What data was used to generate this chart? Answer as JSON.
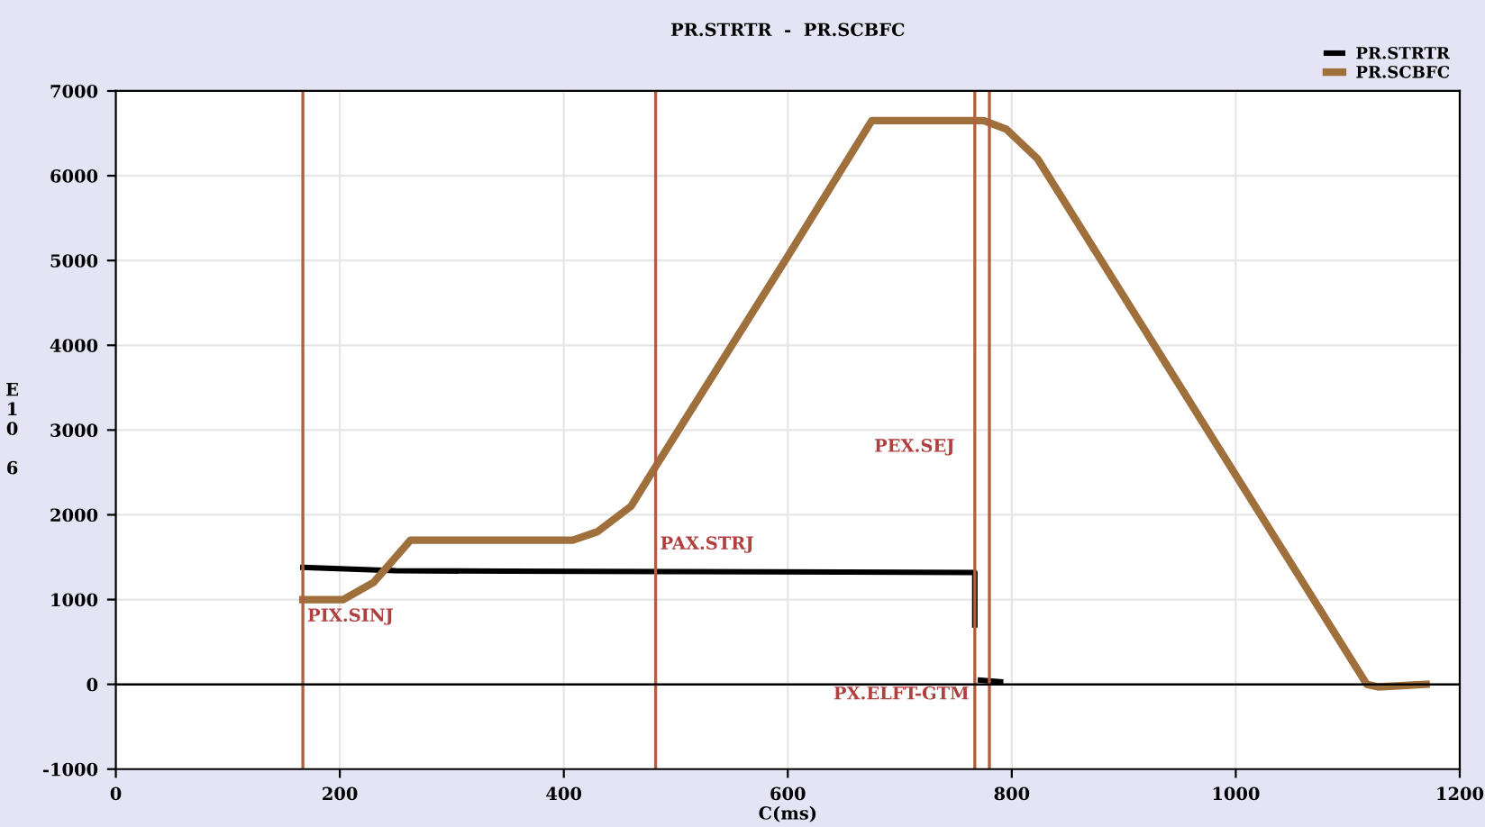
{
  "chart_data": {
    "type": "line",
    "title": "PR.STRTR  -  PR.SCBFC",
    "xlabel": "C(ms)",
    "ylabel": "E10 6",
    "xlim": [
      0,
      1200
    ],
    "xticks": [
      0,
      200,
      400,
      600,
      800,
      1000,
      1200
    ],
    "ylim": [
      -1000,
      7000
    ],
    "yticks": [
      -1000,
      0,
      1000,
      2000,
      3000,
      4000,
      5000,
      6000,
      7000
    ],
    "grid": true,
    "legend": "top right",
    "line_style": "solid",
    "series": [
      {
        "name": "PR.STRTR",
        "color": "#000000",
        "x": [
          167,
          250,
          350,
          500,
          650,
          767,
          767,
          768,
          772,
          790
        ],
        "values": [
          1380,
          1340,
          1335,
          1330,
          1325,
          1320,
          700,
          null,
          50,
          30
        ]
      },
      {
        "name": "PR.SCBFC",
        "color": "#a0703c",
        "x": [
          167,
          203,
          230,
          263,
          408,
          430,
          460,
          482,
          600,
          675,
          775,
          795,
          823,
          1117,
          1127,
          1170
        ],
        "values": [
          1000,
          1000,
          1200,
          1700,
          1700,
          1800,
          2100,
          2570,
          5050,
          6650,
          6650,
          6550,
          6200,
          0,
          -30,
          0
        ]
      }
    ],
    "ref_lines": [
      {
        "axis": "x",
        "value": 167,
        "label": "PIX.SINJ",
        "color": "#b06040"
      },
      {
        "axis": "x",
        "value": 482,
        "label": "PAX.STRJ",
        "color": "#b06040"
      },
      {
        "axis": "x",
        "value": 767,
        "label": "PEX.SEJ",
        "color": "#b06040"
      },
      {
        "axis": "x",
        "value": 780,
        "label": "PX.ELFT-GTM",
        "color": "#b06040"
      },
      {
        "axis": "y",
        "value": 0,
        "color": "#000000"
      }
    ]
  }
}
